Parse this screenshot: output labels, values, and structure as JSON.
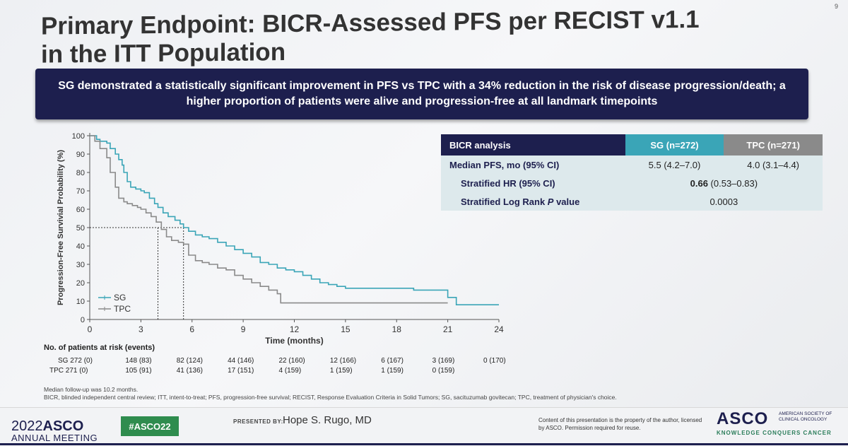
{
  "slide": {
    "number": "9",
    "title_line1": "Primary Endpoint: BICR-Assessed PFS per RECIST v1.1",
    "title_line2": "in the ITT Population",
    "banner": "SG demonstrated a statistically significant improvement in PFS vs TPC with a 34% reduction in the risk of disease progression/death; a higher proportion of patients were alive and progression-free at all landmark timepoints"
  },
  "chart_data": {
    "type": "line",
    "title": "",
    "xlabel": "Time (months)",
    "ylabel": "Progression-Free Survivial Probability (%)",
    "xlim": [
      0,
      24
    ],
    "ylim": [
      0,
      100
    ],
    "xticks": [
      0,
      3,
      6,
      9,
      12,
      15,
      18,
      21,
      24
    ],
    "yticks": [
      0,
      10,
      20,
      30,
      40,
      50,
      60,
      70,
      80,
      90,
      100
    ],
    "median_line_y": 50,
    "median_x": [
      4.0,
      5.5
    ],
    "legend": [
      "SG",
      "TPC"
    ],
    "legend_position": "bottom-left",
    "series": [
      {
        "name": "SG",
        "color": "#3aa5b7",
        "x": [
          0,
          0.4,
          0.6,
          1.0,
          1.2,
          1.5,
          1.7,
          1.9,
          2.0,
          2.2,
          2.4,
          2.7,
          3.0,
          3.2,
          3.5,
          3.8,
          4.0,
          4.3,
          4.6,
          5.0,
          5.3,
          5.5,
          5.8,
          6.2,
          6.6,
          7.0,
          7.5,
          8.0,
          8.5,
          9.0,
          9.5,
          10.0,
          10.5,
          11.0,
          11.5,
          12.0,
          12.5,
          13.0,
          13.5,
          14.0,
          14.5,
          15.0,
          16.0,
          17.0,
          18.0,
          19.0,
          20.0,
          20.8,
          21.0,
          21.5,
          22.5,
          23.5,
          24.0
        ],
        "y": [
          100,
          98,
          97,
          96,
          93,
          90,
          87,
          84,
          80,
          75,
          72,
          71,
          70,
          69,
          66,
          63,
          61,
          58,
          56,
          54,
          52,
          50,
          48,
          46,
          45,
          44,
          42,
          40,
          38,
          36,
          34,
          31,
          30,
          28,
          27,
          26,
          24,
          22,
          20,
          19,
          18,
          17,
          17,
          17,
          17,
          16,
          16,
          16,
          12,
          8,
          8,
          8,
          8
        ]
      },
      {
        "name": "TPC",
        "color": "#8a8a8a",
        "x": [
          0,
          0.3,
          0.6,
          1.0,
          1.2,
          1.5,
          1.7,
          2.0,
          2.2,
          2.5,
          2.8,
          3.0,
          3.3,
          3.6,
          3.9,
          4.2,
          4.5,
          4.8,
          5.2,
          5.5,
          5.8,
          6.2,
          6.6,
          7.0,
          7.5,
          8.0,
          8.5,
          9.0,
          9.5,
          10.0,
          10.5,
          11.0,
          11.2,
          12.0,
          13.0,
          14.0,
          15.0,
          16.0,
          17.0,
          18.0,
          19.0,
          20.0,
          21.0
        ],
        "y": [
          100,
          97,
          93,
          88,
          80,
          72,
          66,
          64,
          63,
          62,
          61,
          60,
          58,
          56,
          53,
          49,
          45,
          43,
          42,
          41,
          35,
          32,
          31,
          30,
          28,
          27,
          24,
          22,
          20,
          18,
          16,
          14,
          9,
          9,
          9,
          9,
          9,
          9,
          9,
          9,
          9,
          9,
          9
        ]
      }
    ],
    "at_risk_title": "No. of patients at risk (events)",
    "at_risk": [
      {
        "label": "SG  272 (0)",
        "values": [
          "148 (83)",
          "82 (124)",
          "44 (146)",
          "22 (160)",
          "12 (166)",
          "6 (167)",
          "3 (169)",
          "0 (170)"
        ]
      },
      {
        "label": "TPC  271 (0)",
        "values": [
          "105 (91)",
          "41 (136)",
          "17 (151)",
          "4 (159)",
          "1 (159)",
          "1 (159)",
          "0 (159)"
        ]
      }
    ]
  },
  "bicr_table": {
    "header": [
      "BICR analysis",
      "SG (n=272)",
      "TPC (n=271)"
    ],
    "rows": [
      {
        "label": "Median PFS, mo (95% CI)",
        "sg": "5.5 (4.2–7.0)",
        "tpc": "4.0 (3.1–4.4)"
      },
      {
        "label": "Stratified HR (95% CI)",
        "combined_bold": "0.66",
        "combined_rest": " (0.53–0.83)"
      },
      {
        "label_pre": "Stratified Log Rank ",
        "label_italic": "P",
        "label_post": " value",
        "combined": "0.0003"
      }
    ]
  },
  "footnote": {
    "line1": "Median follow-up was 10.2 months.",
    "line2": "BICR, blinded independent central review; ITT, intent-to-treat; PFS, progression-free survival; RECIST, Response Evaluation Criteria in Solid Tumors; SG, sacituzumab govitecan; TPC, treatment of physician's choice."
  },
  "footer": {
    "year": "2022",
    "asco": "ASCO",
    "annual": "ANNUAL MEETING",
    "hashtag": "#ASCO22",
    "presented_by": "PRESENTED BY:",
    "presenter": "Hope S. Rugo, MD",
    "property": "Content of this presentation is the property of the author, licensed by ASCO. Permission required for reuse.",
    "asco_big": "ASCO",
    "society": "AMERICAN SOCIETY OF CLINICAL ONCOLOGY",
    "tagline": "KNOWLEDGE CONQUERS CANCER"
  }
}
